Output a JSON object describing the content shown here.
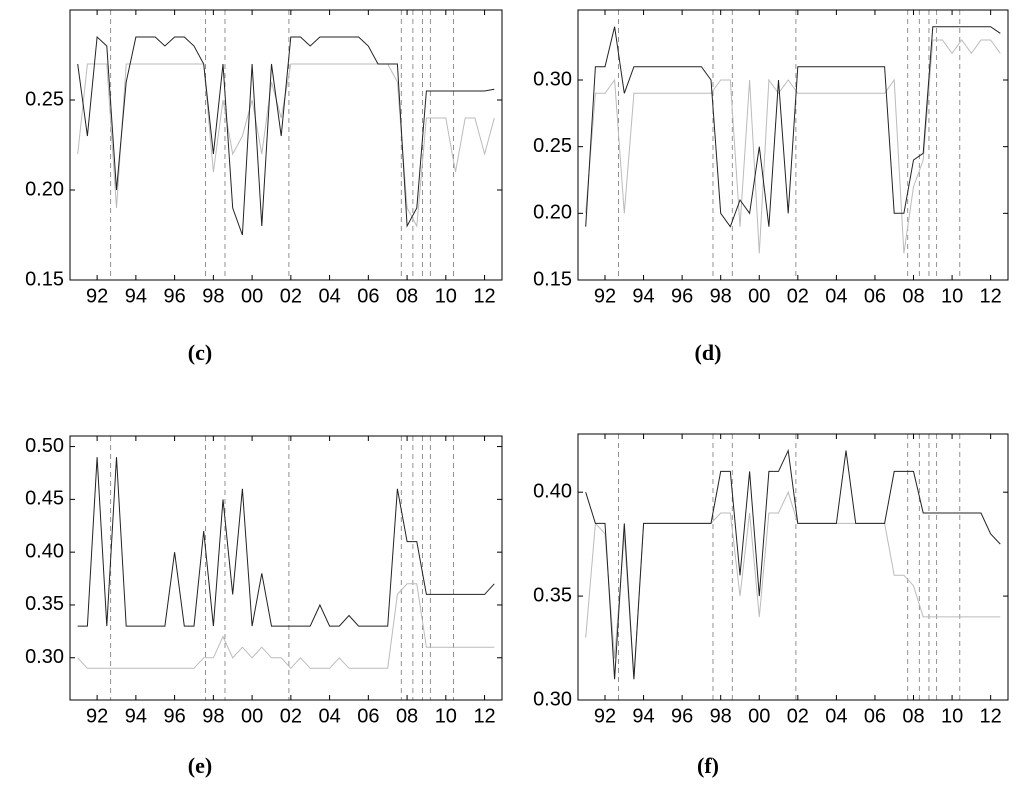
{
  "chart_data": [
    {
      "type": "line",
      "caption": "(c)",
      "x": [
        1991,
        1991.5,
        1992,
        1992.5,
        1993,
        1993.5,
        1994,
        1994.5,
        1995,
        1995.5,
        1996,
        1996.5,
        1997,
        1997.5,
        1998,
        1998.5,
        1999,
        1999.5,
        2000,
        2000.5,
        2001,
        2001.5,
        2002,
        2002.5,
        2003,
        2003.5,
        2004,
        2004.5,
        2005,
        2005.5,
        2006,
        2006.5,
        2007,
        2007.5,
        2008,
        2008.5,
        2009,
        2009.5,
        2010,
        2010.5,
        2011,
        2011.5,
        2012,
        2012.5
      ],
      "xlim": [
        1990.6,
        2012.9
      ],
      "xticks": [
        {
          "value": 1992,
          "label": "92"
        },
        {
          "value": 1994,
          "label": "94"
        },
        {
          "value": 1996,
          "label": "96"
        },
        {
          "value": 1998,
          "label": "98"
        },
        {
          "value": 2000,
          "label": "00"
        },
        {
          "value": 2002,
          "label": "02"
        },
        {
          "value": 2004,
          "label": "04"
        },
        {
          "value": 2006,
          "label": "06"
        },
        {
          "value": 2008,
          "label": "08"
        },
        {
          "value": 2010,
          "label": "10"
        },
        {
          "value": 2012,
          "label": "12"
        }
      ],
      "ylim": [
        0.15,
        0.3
      ],
      "yticks": [
        0.15,
        {
          "value": 0.2,
          "label": "0.20"
        },
        0.25
      ],
      "vlines": [
        1992.7,
        1997.6,
        1998.6,
        2001.9,
        2007.7,
        2008.3,
        2008.8,
        2009.2,
        2010.4
      ],
      "series": [
        {
          "color": "#222222",
          "values": [
            0.27,
            0.23,
            0.285,
            0.28,
            0.2,
            0.26,
            0.285,
            0.285,
            0.285,
            0.28,
            0.285,
            0.285,
            0.28,
            0.27,
            0.22,
            0.27,
            0.19,
            0.175,
            0.27,
            0.18,
            0.27,
            0.23,
            0.285,
            0.285,
            0.28,
            0.285,
            0.285,
            0.285,
            0.285,
            0.285,
            0.28,
            0.27,
            0.27,
            0.27,
            0.18,
            0.19,
            0.255,
            0.255,
            0.255,
            0.255,
            0.255,
            0.255,
            0.255,
            0.256
          ]
        },
        {
          "color": "#bbbbbb",
          "values": [
            0.22,
            0.27,
            0.27,
            0.27,
            0.19,
            0.27,
            0.27,
            0.27,
            0.27,
            0.27,
            0.27,
            0.27,
            0.27,
            0.27,
            0.21,
            0.25,
            0.22,
            0.23,
            0.25,
            0.22,
            0.26,
            0.24,
            0.27,
            0.27,
            0.27,
            0.27,
            0.27,
            0.27,
            0.27,
            0.27,
            0.27,
            0.27,
            0.27,
            0.26,
            0.19,
            0.18,
            0.24,
            0.24,
            0.24,
            0.21,
            0.24,
            0.24,
            0.22,
            0.24
          ]
        }
      ]
    },
    {
      "type": "line",
      "caption": "(d)",
      "x": [
        1991,
        1991.5,
        1992,
        1992.5,
        1993,
        1993.5,
        1994,
        1994.5,
        1995,
        1995.5,
        1996,
        1996.5,
        1997,
        1997.5,
        1998,
        1998.5,
        1999,
        1999.5,
        2000,
        2000.5,
        2001,
        2001.5,
        2002,
        2002.5,
        2003,
        2003.5,
        2004,
        2004.5,
        2005,
        2005.5,
        2006,
        2006.5,
        2007,
        2007.5,
        2008,
        2008.5,
        2009,
        2009.5,
        2010,
        2010.5,
        2011,
        2011.5,
        2012,
        2012.5
      ],
      "xlim": [
        1990.6,
        2012.9
      ],
      "xticks": [
        {
          "value": 1992,
          "label": "92"
        },
        {
          "value": 1994,
          "label": "94"
        },
        {
          "value": 1996,
          "label": "96"
        },
        {
          "value": 1998,
          "label": "98"
        },
        {
          "value": 2000,
          "label": "00"
        },
        {
          "value": 2002,
          "label": "02"
        },
        {
          "value": 2004,
          "label": "04"
        },
        {
          "value": 2006,
          "label": "06"
        },
        {
          "value": 2008,
          "label": "08"
        },
        {
          "value": 2010,
          "label": "10"
        },
        {
          "value": 2012,
          "label": "12"
        }
      ],
      "ylim": [
        0.15,
        0.3525
      ],
      "yticks": [
        0.15,
        {
          "value": 0.2,
          "label": "0.20"
        },
        0.25,
        {
          "value": 0.3,
          "label": "0.30"
        }
      ],
      "vlines": [
        1992.7,
        1997.6,
        1998.6,
        2001.9,
        2007.7,
        2008.3,
        2008.8,
        2009.2,
        2010.4
      ],
      "series": [
        {
          "color": "#222222",
          "values": [
            0.19,
            0.31,
            0.31,
            0.34,
            0.29,
            0.31,
            0.31,
            0.31,
            0.31,
            0.31,
            0.31,
            0.31,
            0.31,
            0.3,
            0.2,
            0.19,
            0.21,
            0.2,
            0.25,
            0.19,
            0.3,
            0.2,
            0.31,
            0.31,
            0.31,
            0.31,
            0.31,
            0.31,
            0.31,
            0.31,
            0.31,
            0.31,
            0.2,
            0.2,
            0.24,
            0.245,
            0.34,
            0.34,
            0.34,
            0.34,
            0.34,
            0.34,
            0.34,
            0.335
          ]
        },
        {
          "color": "#bbbbbb",
          "values": [
            0.2,
            0.29,
            0.29,
            0.3,
            0.2,
            0.29,
            0.29,
            0.29,
            0.29,
            0.29,
            0.29,
            0.29,
            0.29,
            0.29,
            0.3,
            0.3,
            0.19,
            0.3,
            0.17,
            0.3,
            0.29,
            0.3,
            0.29,
            0.29,
            0.29,
            0.29,
            0.29,
            0.29,
            0.29,
            0.29,
            0.29,
            0.29,
            0.3,
            0.17,
            0.22,
            0.24,
            0.33,
            0.33,
            0.32,
            0.33,
            0.32,
            0.33,
            0.33,
            0.32
          ]
        }
      ]
    },
    {
      "type": "line",
      "caption": "(e)",
      "x": [
        1991,
        1991.5,
        1992,
        1992.5,
        1993,
        1993.5,
        1994,
        1994.5,
        1995,
        1995.5,
        1996,
        1996.5,
        1997,
        1997.5,
        1998,
        1998.5,
        1999,
        1999.5,
        2000,
        2000.5,
        2001,
        2001.5,
        2002,
        2002.5,
        2003,
        2003.5,
        2004,
        2004.5,
        2005,
        2005.5,
        2006,
        2006.5,
        2007,
        2007.5,
        2008,
        2008.5,
        2009,
        2009.5,
        2010,
        2010.5,
        2011,
        2011.5,
        2012,
        2012.5
      ],
      "xlim": [
        1990.6,
        2012.9
      ],
      "xticks": [
        {
          "value": 1992,
          "label": "92"
        },
        {
          "value": 1994,
          "label": "94"
        },
        {
          "value": 1996,
          "label": "96"
        },
        {
          "value": 1998,
          "label": "98"
        },
        {
          "value": 2000,
          "label": "00"
        },
        {
          "value": 2002,
          "label": "02"
        },
        {
          "value": 2004,
          "label": "04"
        },
        {
          "value": 2006,
          "label": "06"
        },
        {
          "value": 2008,
          "label": "08"
        },
        {
          "value": 2010,
          "label": "10"
        },
        {
          "value": 2012,
          "label": "12"
        }
      ],
      "ylim": [
        0.26,
        0.51
      ],
      "yticks": [
        {
          "value": 0.3,
          "label": "0.30"
        },
        0.35,
        {
          "value": 0.4,
          "label": "0.40"
        },
        0.45,
        {
          "value": 0.5,
          "label": "0.50"
        }
      ],
      "vlines": [
        1992.7,
        1997.6,
        1998.6,
        2001.9,
        2007.7,
        2008.3,
        2008.8,
        2009.2,
        2010.4
      ],
      "series": [
        {
          "color": "#222222",
          "values": [
            0.33,
            0.33,
            0.49,
            0.33,
            0.49,
            0.33,
            0.33,
            0.33,
            0.33,
            0.33,
            0.4,
            0.33,
            0.33,
            0.42,
            0.33,
            0.45,
            0.36,
            0.46,
            0.33,
            0.38,
            0.33,
            0.33,
            0.33,
            0.33,
            0.33,
            0.35,
            0.33,
            0.33,
            0.34,
            0.33,
            0.33,
            0.33,
            0.33,
            0.46,
            0.41,
            0.41,
            0.36,
            0.36,
            0.36,
            0.36,
            0.36,
            0.36,
            0.36,
            0.37
          ]
        },
        {
          "color": "#bbbbbb",
          "values": [
            0.3,
            0.29,
            0.29,
            0.29,
            0.29,
            0.29,
            0.29,
            0.29,
            0.29,
            0.29,
            0.29,
            0.29,
            0.29,
            0.3,
            0.3,
            0.32,
            0.3,
            0.31,
            0.3,
            0.31,
            0.3,
            0.3,
            0.29,
            0.3,
            0.29,
            0.29,
            0.29,
            0.3,
            0.29,
            0.29,
            0.29,
            0.29,
            0.29,
            0.36,
            0.37,
            0.37,
            0.31,
            0.31,
            0.31,
            0.31,
            0.31,
            0.31,
            0.31,
            0.31
          ]
        }
      ]
    },
    {
      "type": "line",
      "caption": "(f)",
      "x": [
        1991,
        1991.5,
        1992,
        1992.5,
        1993,
        1993.5,
        1994,
        1994.5,
        1995,
        1995.5,
        1996,
        1996.5,
        1997,
        1997.5,
        1998,
        1998.5,
        1999,
        1999.5,
        2000,
        2000.5,
        2001,
        2001.5,
        2002,
        2002.5,
        2003,
        2003.5,
        2004,
        2004.5,
        2005,
        2005.5,
        2006,
        2006.5,
        2007,
        2007.5,
        2008,
        2008.5,
        2009,
        2009.5,
        2010,
        2010.5,
        2011,
        2011.5,
        2012,
        2012.5
      ],
      "xlim": [
        1990.6,
        2012.9
      ],
      "xticks": [
        {
          "value": 1992,
          "label": "92"
        },
        {
          "value": 1994,
          "label": "94"
        },
        {
          "value": 1996,
          "label": "96"
        },
        {
          "value": 1998,
          "label": "98"
        },
        {
          "value": 2000,
          "label": "00"
        },
        {
          "value": 2002,
          "label": "02"
        },
        {
          "value": 2004,
          "label": "04"
        },
        {
          "value": 2006,
          "label": "06"
        },
        {
          "value": 2008,
          "label": "08"
        },
        {
          "value": 2010,
          "label": "10"
        },
        {
          "value": 2012,
          "label": "12"
        }
      ],
      "ylim": [
        0.3,
        0.428
      ],
      "yticks": [
        {
          "value": 0.3,
          "label": "0.30"
        },
        0.35,
        {
          "value": 0.4,
          "label": "0.40"
        }
      ],
      "vlines": [
        1992.7,
        1997.6,
        1998.6,
        2001.9,
        2007.7,
        2008.3,
        2008.8,
        2009.2,
        2010.4
      ],
      "series": [
        {
          "color": "#222222",
          "values": [
            0.4,
            0.385,
            0.385,
            0.31,
            0.385,
            0.31,
            0.385,
            0.385,
            0.385,
            0.385,
            0.385,
            0.385,
            0.385,
            0.385,
            0.41,
            0.41,
            0.36,
            0.41,
            0.35,
            0.41,
            0.41,
            0.42,
            0.385,
            0.385,
            0.385,
            0.385,
            0.385,
            0.42,
            0.385,
            0.385,
            0.385,
            0.385,
            0.41,
            0.41,
            0.41,
            0.39,
            0.39,
            0.39,
            0.39,
            0.39,
            0.39,
            0.39,
            0.38,
            0.375
          ]
        },
        {
          "color": "#bbbbbb",
          "values": [
            0.33,
            0.385,
            0.38,
            0.32,
            0.38,
            0.31,
            0.385,
            0.385,
            0.385,
            0.385,
            0.385,
            0.385,
            0.385,
            0.385,
            0.39,
            0.39,
            0.35,
            0.39,
            0.34,
            0.39,
            0.39,
            0.4,
            0.385,
            0.385,
            0.385,
            0.385,
            0.385,
            0.385,
            0.385,
            0.385,
            0.385,
            0.385,
            0.36,
            0.36,
            0.355,
            0.34,
            0.34,
            0.34,
            0.34,
            0.34,
            0.34,
            0.34,
            0.34,
            0.34
          ]
        }
      ]
    }
  ]
}
